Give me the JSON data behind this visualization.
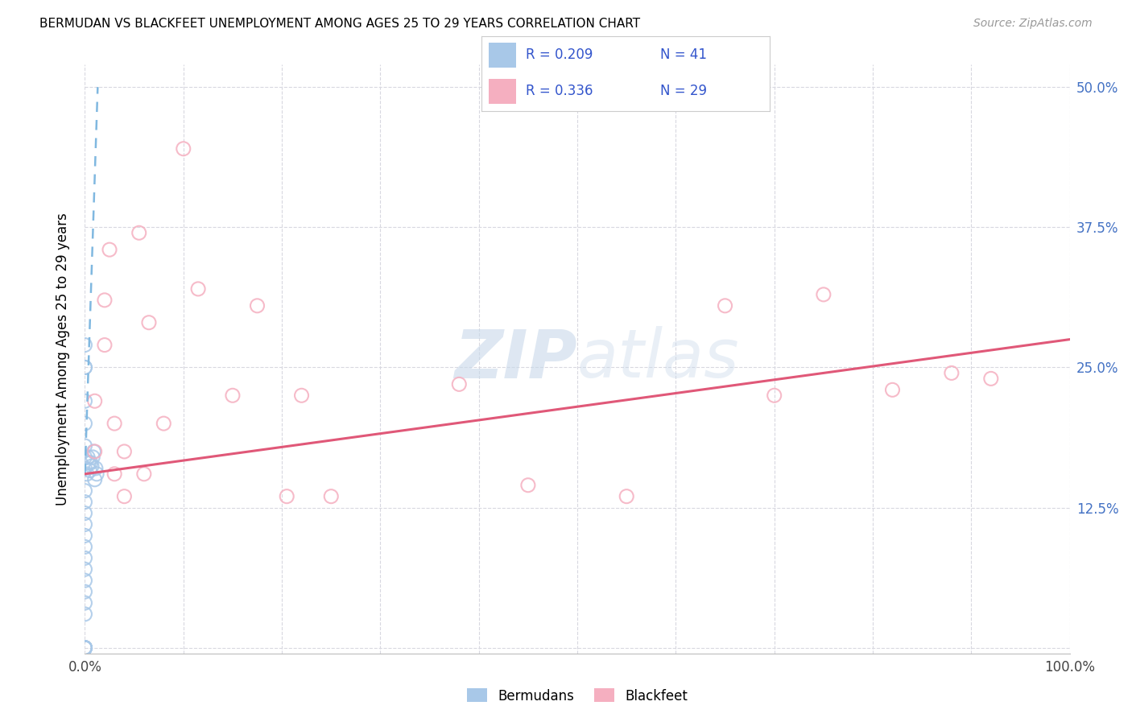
{
  "title": "BERMUDAN VS BLACKFEET UNEMPLOYMENT AMONG AGES 25 TO 29 YEARS CORRELATION CHART",
  "source": "Source: ZipAtlas.com",
  "ylabel": "Unemployment Among Ages 25 to 29 years",
  "xlim": [
    0.0,
    1.0
  ],
  "ylim": [
    -0.005,
    0.52
  ],
  "xticks": [
    0.0,
    0.1,
    0.2,
    0.3,
    0.4,
    0.5,
    0.6,
    0.7,
    0.8,
    0.9,
    1.0
  ],
  "xticklabels": [
    "0.0%",
    "",
    "",
    "",
    "",
    "",
    "",
    "",
    "",
    "",
    "100.0%"
  ],
  "yticks": [
    0.0,
    0.125,
    0.25,
    0.375,
    0.5
  ],
  "yticklabels_right": [
    "",
    "12.5%",
    "25.0%",
    "37.5%",
    "50.0%"
  ],
  "legend_line1_r": "R = 0.209",
  "legend_line1_n": "N = 41",
  "legend_line2_r": "R = 0.336",
  "legend_line2_n": "N = 29",
  "legend_label_bermudans": "Bermudans",
  "legend_label_blackfeet": "Blackfeet",
  "bermudans_color": "#a8c8e8",
  "blackfeet_color": "#f5afc0",
  "trendline_bermudans_color": "#80b8e0",
  "trendline_blackfeet_color": "#e05878",
  "legend_text_color": "#3355cc",
  "watermark_color": "#c8d8ea",
  "grid_color": "#d8d8e0",
  "bermudans_x": [
    0.0,
    0.0,
    0.0,
    0.0,
    0.0,
    0.0,
    0.0,
    0.0,
    0.0,
    0.0,
    0.0,
    0.0,
    0.0,
    0.0,
    0.0,
    0.0,
    0.0,
    0.0,
    0.0,
    0.0,
    0.0,
    0.0,
    0.0,
    0.0,
    0.0,
    0.0,
    0.0,
    0.0,
    0.0,
    0.0,
    0.002,
    0.003,
    0.004,
    0.005,
    0.006,
    0.007,
    0.008,
    0.009,
    0.01,
    0.011,
    0.012
  ],
  "bermudans_y": [
    0.0,
    0.0,
    0.0,
    0.0,
    0.0,
    0.0,
    0.0,
    0.0,
    0.0,
    0.0,
    0.03,
    0.04,
    0.05,
    0.06,
    0.07,
    0.08,
    0.09,
    0.1,
    0.11,
    0.12,
    0.13,
    0.14,
    0.16,
    0.17,
    0.18,
    0.2,
    0.22,
    0.25,
    0.25,
    0.27,
    0.155,
    0.17,
    0.165,
    0.158,
    0.165,
    0.162,
    0.17,
    0.175,
    0.15,
    0.16,
    0.155
  ],
  "blackfeet_x": [
    0.01,
    0.01,
    0.02,
    0.025,
    0.03,
    0.04,
    0.04,
    0.055,
    0.065,
    0.08,
    0.1,
    0.115,
    0.15,
    0.175,
    0.205,
    0.22,
    0.25,
    0.38,
    0.45,
    0.55,
    0.65,
    0.7,
    0.75,
    0.82,
    0.88,
    0.92,
    0.02,
    0.03,
    0.06
  ],
  "blackfeet_y": [
    0.175,
    0.22,
    0.31,
    0.355,
    0.2,
    0.135,
    0.175,
    0.37,
    0.29,
    0.2,
    0.445,
    0.32,
    0.225,
    0.305,
    0.135,
    0.225,
    0.135,
    0.235,
    0.145,
    0.135,
    0.305,
    0.225,
    0.315,
    0.23,
    0.245,
    0.24,
    0.27,
    0.155,
    0.155
  ],
  "bermudans_trendline_x": [
    0.0,
    0.013
  ],
  "bermudans_trendline_y": [
    0.155,
    0.5
  ],
  "blackfeet_trendline_x": [
    0.0,
    1.0
  ],
  "blackfeet_trendline_y": [
    0.155,
    0.275
  ]
}
